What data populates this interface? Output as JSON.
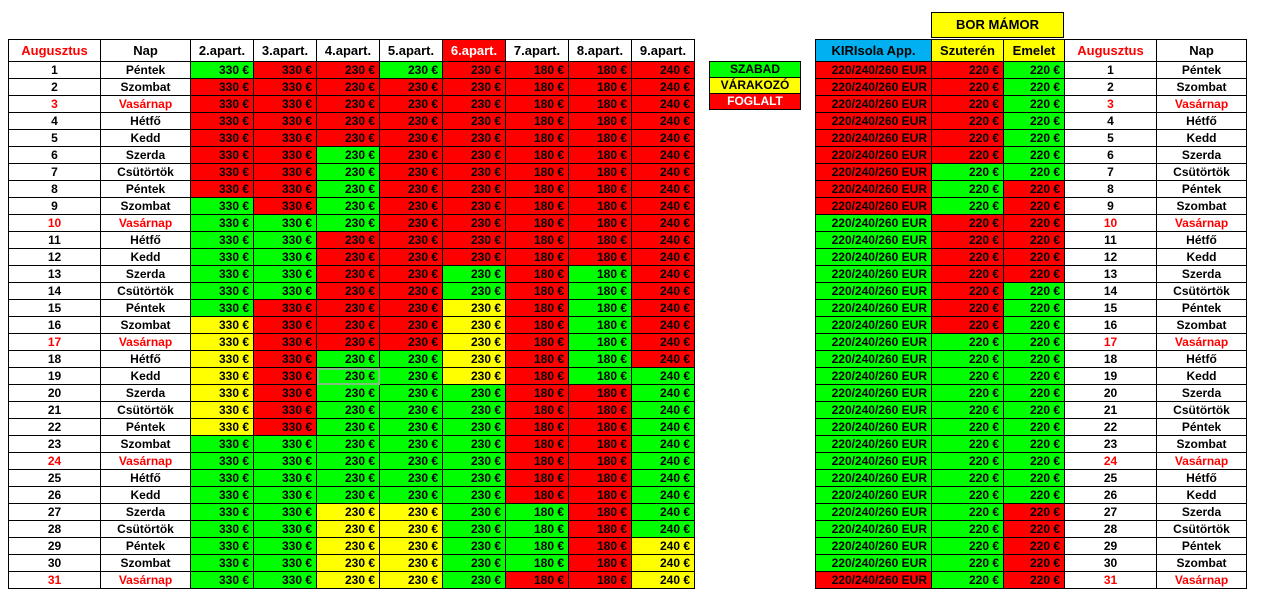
{
  "headers": {
    "month": "Augusztus",
    "day": "Nap",
    "apts": [
      "2.apart.",
      "3.apart.",
      "4.apart.",
      "5.apart.",
      "6.apart.",
      "7.apart.",
      "8.apart.",
      "9.apart."
    ],
    "kiri": "KIRIsola App.",
    "szuteren": "Szuterén",
    "emelet": "Emelet"
  },
  "bor_title": "BOR  MÁMOR",
  "legend": [
    {
      "label": "SZABAD",
      "color": "#00ff00"
    },
    {
      "label": "VÁRAKOZÓ",
      "color": "#ffff00"
    },
    {
      "label": "FOGLALT",
      "color": "#ff0000"
    }
  ],
  "prices": {
    "apts": [
      "330 €",
      "330 €",
      "230 €",
      "230 €",
      "230 €",
      "180 €",
      "180 €",
      "240 €"
    ],
    "kiri": "220/240/260 EUR",
    "szuteren": "220 €",
    "emelet": "220 €"
  },
  "rows": [
    {
      "d": "1",
      "n": "Péntek",
      "s": [
        "g",
        "r",
        "r",
        "g",
        "r",
        "r",
        "r",
        "r"
      ],
      "k": "r",
      "sz": "r",
      "em": "g"
    },
    {
      "d": "2",
      "n": "Szombat",
      "s": [
        "r",
        "r",
        "r",
        "r",
        "r",
        "r",
        "r",
        "r"
      ],
      "k": "r",
      "sz": "r",
      "em": "g"
    },
    {
      "d": "3",
      "n": "Vasárnap",
      "sun": true,
      "s": [
        "r",
        "r",
        "r",
        "r",
        "r",
        "r",
        "r",
        "r"
      ],
      "k": "r",
      "sz": "r",
      "em": "g"
    },
    {
      "d": "4",
      "n": "Hétfő",
      "s": [
        "r",
        "r",
        "r",
        "r",
        "r",
        "r",
        "r",
        "r"
      ],
      "k": "r",
      "sz": "r",
      "em": "g"
    },
    {
      "d": "5",
      "n": "Kedd",
      "s": [
        "r",
        "r",
        "r",
        "r",
        "r",
        "r",
        "r",
        "r"
      ],
      "k": "r",
      "sz": "r",
      "em": "g"
    },
    {
      "d": "6",
      "n": "Szerda",
      "s": [
        "r",
        "r",
        "g",
        "r",
        "r",
        "r",
        "r",
        "r"
      ],
      "k": "r",
      "sz": "r",
      "em": "g"
    },
    {
      "d": "7",
      "n": "Csütörtök",
      "s": [
        "r",
        "r",
        "g",
        "r",
        "r",
        "r",
        "r",
        "r"
      ],
      "k": "r",
      "sz": "g",
      "em": "g"
    },
    {
      "d": "8",
      "n": "Péntek",
      "s": [
        "r",
        "r",
        "g",
        "r",
        "r",
        "r",
        "r",
        "r"
      ],
      "k": "r",
      "sz": "g",
      "em": "r"
    },
    {
      "d": "9",
      "n": "Szombat",
      "s": [
        "g",
        "r",
        "g",
        "r",
        "r",
        "r",
        "r",
        "r"
      ],
      "k": "r",
      "sz": "g",
      "em": "r"
    },
    {
      "d": "10",
      "n": "Vasárnap",
      "sun": true,
      "s": [
        "g",
        "g",
        "g",
        "r",
        "r",
        "r",
        "r",
        "r"
      ],
      "k": "g",
      "sz": "r",
      "em": "r"
    },
    {
      "d": "11",
      "n": "Hétfő",
      "s": [
        "g",
        "g",
        "r",
        "r",
        "r",
        "r",
        "r",
        "r"
      ],
      "k": "g",
      "sz": "r",
      "em": "r"
    },
    {
      "d": "12",
      "n": "Kedd",
      "s": [
        "g",
        "g",
        "r",
        "r",
        "r",
        "r",
        "r",
        "r"
      ],
      "k": "g",
      "sz": "r",
      "em": "r"
    },
    {
      "d": "13",
      "n": "Szerda",
      "s": [
        "g",
        "g",
        "r",
        "r",
        "g",
        "r",
        "g",
        "r"
      ],
      "k": "g",
      "sz": "r",
      "em": "r"
    },
    {
      "d": "14",
      "n": "Csütörtök",
      "s": [
        "g",
        "g",
        "r",
        "r",
        "g",
        "r",
        "g",
        "r"
      ],
      "k": "g",
      "sz": "r",
      "em": "g"
    },
    {
      "d": "15",
      "n": "Péntek",
      "s": [
        "g",
        "r",
        "r",
        "r",
        "y",
        "r",
        "g",
        "r"
      ],
      "k": "g",
      "sz": "r",
      "em": "g"
    },
    {
      "d": "16",
      "n": "Szombat",
      "s": [
        "y",
        "r",
        "r",
        "r",
        "y",
        "r",
        "g",
        "r"
      ],
      "k": "g",
      "sz": "r",
      "em": "g"
    },
    {
      "d": "17",
      "n": "Vasárnap",
      "sun": true,
      "s": [
        "y",
        "r",
        "r",
        "r",
        "y",
        "r",
        "g",
        "r"
      ],
      "k": "g",
      "sz": "g",
      "em": "g"
    },
    {
      "d": "18",
      "n": "Hétfő",
      "s": [
        "y",
        "r",
        "g",
        "g",
        "y",
        "r",
        "g",
        "r"
      ],
      "k": "g",
      "sz": "g",
      "em": "g"
    },
    {
      "d": "19",
      "n": "Kedd",
      "s": [
        "y",
        "r",
        "g",
        "g",
        "y",
        "r",
        "g",
        "g"
      ],
      "k": "g",
      "sz": "g",
      "em": "g"
    },
    {
      "d": "20",
      "n": "Szerda",
      "s": [
        "y",
        "r",
        "g",
        "g",
        "g",
        "r",
        "r",
        "g"
      ],
      "k": "g",
      "sz": "g",
      "em": "g"
    },
    {
      "d": "21",
      "n": "Csütörtök",
      "s": [
        "y",
        "r",
        "g",
        "g",
        "g",
        "r",
        "r",
        "g"
      ],
      "k": "g",
      "sz": "g",
      "em": "g"
    },
    {
      "d": "22",
      "n": "Péntek",
      "s": [
        "y",
        "r",
        "g",
        "g",
        "g",
        "r",
        "r",
        "g"
      ],
      "k": "g",
      "sz": "g",
      "em": "g"
    },
    {
      "d": "23",
      "n": "Szombat",
      "s": [
        "g",
        "g",
        "g",
        "g",
        "g",
        "r",
        "r",
        "g"
      ],
      "k": "g",
      "sz": "g",
      "em": "g"
    },
    {
      "d": "24",
      "n": "Vasárnap",
      "sun": true,
      "s": [
        "g",
        "g",
        "g",
        "g",
        "g",
        "r",
        "r",
        "g"
      ],
      "k": "g",
      "sz": "g",
      "em": "g"
    },
    {
      "d": "25",
      "n": "Hétfő",
      "s": [
        "g",
        "g",
        "g",
        "g",
        "g",
        "r",
        "r",
        "g"
      ],
      "k": "g",
      "sz": "g",
      "em": "g"
    },
    {
      "d": "26",
      "n": "Kedd",
      "s": [
        "g",
        "g",
        "g",
        "g",
        "g",
        "r",
        "r",
        "g"
      ],
      "k": "g",
      "sz": "g",
      "em": "g"
    },
    {
      "d": "27",
      "n": "Szerda",
      "s": [
        "g",
        "g",
        "y",
        "y",
        "g",
        "g",
        "r",
        "g"
      ],
      "k": "g",
      "sz": "g",
      "em": "r"
    },
    {
      "d": "28",
      "n": "Csütörtök",
      "s": [
        "g",
        "g",
        "y",
        "y",
        "g",
        "g",
        "r",
        "g"
      ],
      "k": "g",
      "sz": "g",
      "em": "r"
    },
    {
      "d": "29",
      "n": "Péntek",
      "s": [
        "g",
        "g",
        "y",
        "y",
        "g",
        "g",
        "r",
        "y"
      ],
      "k": "g",
      "sz": "g",
      "em": "r"
    },
    {
      "d": "30",
      "n": "Szombat",
      "s": [
        "g",
        "g",
        "y",
        "y",
        "g",
        "g",
        "r",
        "y"
      ],
      "k": "g",
      "sz": "g",
      "em": "r"
    },
    {
      "d": "31",
      "n": "Vasárnap",
      "sun": true,
      "s": [
        "g",
        "g",
        "y",
        "y",
        "g",
        "r",
        "r",
        "y"
      ],
      "k": "r",
      "sz": "g",
      "em": "r"
    }
  ]
}
